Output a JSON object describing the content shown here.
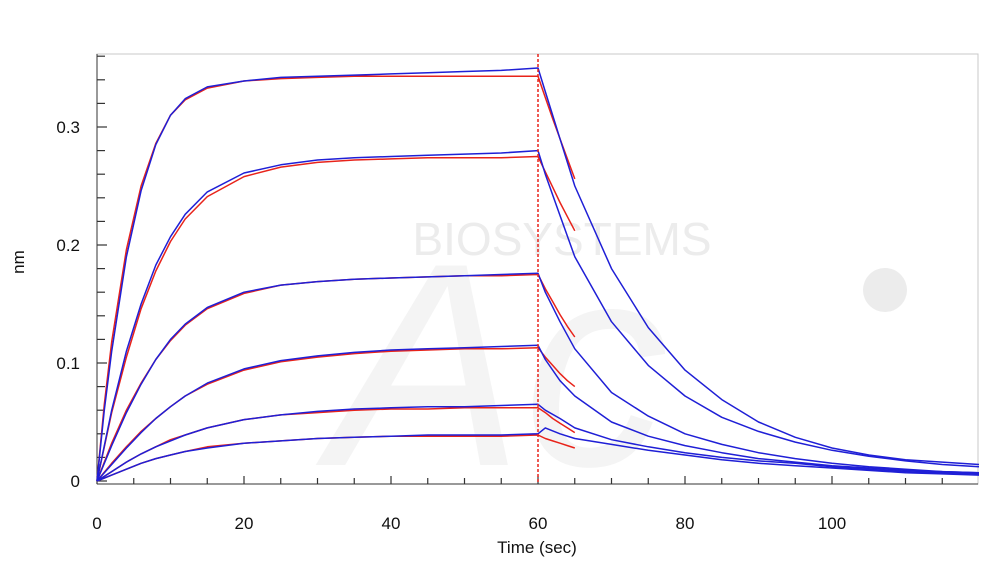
{
  "chart_data": {
    "type": "line",
    "title": "",
    "xlabel": "Time (sec)",
    "ylabel": "nm",
    "xlim": [
      0,
      120
    ],
    "ylim": [
      0,
      0.36
    ],
    "xticks": [
      0,
      20,
      40,
      60,
      80,
      100
    ],
    "xtick_labels": [
      "0",
      "20",
      "40",
      "60",
      "80",
      "100"
    ],
    "yticks": [
      0,
      0.1,
      0.2,
      0.3
    ],
    "ytick_labels": [
      "0",
      "0.1",
      "0.2",
      "0.3"
    ],
    "grid": false,
    "legend": "none",
    "watermark": "BIOSYSTEMS",
    "dissociation_start": 60,
    "colors": {
      "measured": "#1f1fd6",
      "fit": "#e8231a",
      "marker": "#e8231a"
    },
    "series": [
      {
        "x": [
          0,
          1,
          2,
          4,
          6,
          8,
          10,
          12,
          15,
          20,
          25,
          30,
          35,
          40,
          45,
          50,
          55,
          60,
          61,
          63,
          65,
          70,
          75,
          80,
          85,
          90,
          95,
          100,
          105,
          110,
          115,
          120
        ],
        "y": [
          0,
          0.06,
          0.11,
          0.19,
          0.246,
          0.285,
          0.31,
          0.324,
          0.334,
          0.339,
          0.342,
          0.343,
          0.344,
          0.345,
          0.346,
          0.347,
          0.348,
          0.35,
          0.33,
          0.29,
          0.25,
          0.18,
          0.13,
          0.094,
          0.069,
          0.05,
          0.037,
          0.028,
          0.022,
          0.018,
          0.016,
          0.014
        ],
        "fit_x": [
          0,
          1,
          2,
          4,
          6,
          8,
          10,
          12,
          15,
          20,
          25,
          30,
          35,
          40,
          45,
          50,
          55,
          60,
          61,
          62,
          63,
          64,
          65
        ],
        "fit_y": [
          0,
          0.065,
          0.118,
          0.196,
          0.25,
          0.286,
          0.31,
          0.323,
          0.333,
          0.339,
          0.341,
          0.342,
          0.343,
          0.343,
          0.343,
          0.343,
          0.343,
          0.343,
          0.325,
          0.307,
          0.29,
          0.273,
          0.256
        ]
      },
      {
        "x": [
          0,
          2,
          4,
          6,
          8,
          10,
          12,
          15,
          20,
          25,
          30,
          35,
          40,
          45,
          50,
          55,
          60,
          61,
          63,
          65,
          70,
          75,
          80,
          85,
          90,
          95,
          100,
          105,
          110,
          115,
          120
        ],
        "y": [
          0,
          0.06,
          0.11,
          0.15,
          0.183,
          0.207,
          0.226,
          0.245,
          0.261,
          0.268,
          0.272,
          0.274,
          0.275,
          0.276,
          0.277,
          0.278,
          0.28,
          0.26,
          0.225,
          0.19,
          0.135,
          0.098,
          0.072,
          0.054,
          0.042,
          0.033,
          0.026,
          0.021,
          0.017,
          0.014,
          0.012
        ],
        "fit_x": [
          0,
          2,
          4,
          6,
          8,
          10,
          12,
          15,
          20,
          25,
          30,
          35,
          40,
          45,
          50,
          55,
          60,
          61,
          62,
          63,
          64,
          65
        ],
        "fit_y": [
          0,
          0.058,
          0.105,
          0.146,
          0.178,
          0.203,
          0.222,
          0.241,
          0.258,
          0.266,
          0.27,
          0.272,
          0.273,
          0.274,
          0.274,
          0.274,
          0.275,
          0.262,
          0.249,
          0.236,
          0.224,
          0.212
        ]
      },
      {
        "x": [
          0,
          2,
          4,
          6,
          8,
          10,
          12,
          15,
          20,
          25,
          30,
          35,
          40,
          45,
          50,
          55,
          60,
          61,
          63,
          65,
          70,
          75,
          80,
          85,
          90,
          95,
          100,
          105,
          110,
          115,
          120
        ],
        "y": [
          0,
          0.03,
          0.058,
          0.082,
          0.103,
          0.12,
          0.133,
          0.147,
          0.16,
          0.166,
          0.169,
          0.171,
          0.172,
          0.173,
          0.174,
          0.175,
          0.176,
          0.16,
          0.135,
          0.112,
          0.075,
          0.055,
          0.04,
          0.031,
          0.024,
          0.019,
          0.015,
          0.012,
          0.01,
          0.008,
          0.007
        ],
        "fit_x": [
          0,
          2,
          4,
          6,
          8,
          10,
          12,
          15,
          20,
          25,
          30,
          35,
          40,
          45,
          50,
          55,
          60,
          61,
          62,
          63,
          64,
          65
        ],
        "fit_y": [
          0,
          0.032,
          0.06,
          0.083,
          0.103,
          0.119,
          0.132,
          0.146,
          0.159,
          0.166,
          0.169,
          0.171,
          0.172,
          0.173,
          0.174,
          0.174,
          0.175,
          0.163,
          0.152,
          0.141,
          0.131,
          0.122
        ]
      },
      {
        "x": [
          0,
          2,
          4,
          6,
          8,
          10,
          12,
          15,
          20,
          25,
          30,
          35,
          40,
          45,
          50,
          55,
          60,
          61,
          63,
          65,
          70,
          75,
          80,
          85,
          90,
          95,
          100,
          105,
          110,
          115,
          120
        ],
        "y": [
          0,
          0.014,
          0.028,
          0.041,
          0.053,
          0.063,
          0.072,
          0.083,
          0.095,
          0.102,
          0.106,
          0.109,
          0.111,
          0.112,
          0.113,
          0.114,
          0.115,
          0.103,
          0.085,
          0.072,
          0.05,
          0.038,
          0.03,
          0.024,
          0.019,
          0.016,
          0.013,
          0.011,
          0.009,
          0.008,
          0.007
        ],
        "fit_x": [
          0,
          2,
          4,
          6,
          8,
          10,
          12,
          15,
          20,
          25,
          30,
          35,
          40,
          45,
          50,
          55,
          60,
          61,
          62,
          63,
          64,
          65
        ],
        "fit_y": [
          0,
          0.015,
          0.029,
          0.042,
          0.053,
          0.063,
          0.072,
          0.082,
          0.094,
          0.101,
          0.105,
          0.108,
          0.11,
          0.111,
          0.112,
          0.112,
          0.113,
          0.105,
          0.098,
          0.091,
          0.085,
          0.08
        ]
      },
      {
        "x": [
          0,
          2,
          4,
          6,
          8,
          10,
          12,
          15,
          20,
          25,
          30,
          35,
          40,
          45,
          50,
          55,
          60,
          61,
          63,
          65,
          70,
          75,
          80,
          85,
          90,
          95,
          100,
          105,
          110,
          115,
          120
        ],
        "y": [
          0,
          0.008,
          0.016,
          0.023,
          0.029,
          0.034,
          0.039,
          0.045,
          0.052,
          0.056,
          0.059,
          0.061,
          0.062,
          0.063,
          0.063,
          0.064,
          0.065,
          0.06,
          0.053,
          0.045,
          0.035,
          0.029,
          0.024,
          0.02,
          0.017,
          0.015,
          0.012,
          0.01,
          0.008,
          0.007,
          0.006
        ],
        "fit_x": [
          0,
          2,
          4,
          6,
          8,
          10,
          12,
          15,
          20,
          25,
          30,
          35,
          40,
          45,
          50,
          55,
          60,
          61,
          62,
          63,
          64,
          65
        ],
        "fit_y": [
          0,
          0.008,
          0.016,
          0.023,
          0.029,
          0.035,
          0.039,
          0.045,
          0.052,
          0.056,
          0.058,
          0.06,
          0.061,
          0.061,
          0.062,
          0.062,
          0.062,
          0.058,
          0.053,
          0.049,
          0.045,
          0.041
        ]
      },
      {
        "x": [
          0,
          2,
          4,
          6,
          8,
          10,
          12,
          15,
          20,
          25,
          30,
          35,
          40,
          45,
          50,
          55,
          60,
          61,
          63,
          65,
          70,
          75,
          80,
          85,
          90,
          95,
          100,
          105,
          110,
          115,
          120
        ],
        "y": [
          0,
          0.005,
          0.01,
          0.015,
          0.019,
          0.022,
          0.025,
          0.028,
          0.032,
          0.034,
          0.036,
          0.037,
          0.038,
          0.039,
          0.039,
          0.039,
          0.04,
          0.045,
          0.04,
          0.036,
          0.031,
          0.026,
          0.022,
          0.018,
          0.015,
          0.013,
          0.011,
          0.009,
          0.007,
          0.006,
          0.005
        ],
        "fit_x": [
          0,
          2,
          4,
          6,
          8,
          10,
          12,
          15,
          20,
          25,
          30,
          35,
          40,
          45,
          50,
          55,
          60,
          61,
          62,
          63,
          64,
          65
        ],
        "fit_y": [
          0,
          0.005,
          0.01,
          0.015,
          0.019,
          0.022,
          0.025,
          0.029,
          0.032,
          0.034,
          0.036,
          0.037,
          0.038,
          0.038,
          0.038,
          0.038,
          0.039,
          0.036,
          0.034,
          0.032,
          0.03,
          0.028
        ]
      }
    ]
  }
}
